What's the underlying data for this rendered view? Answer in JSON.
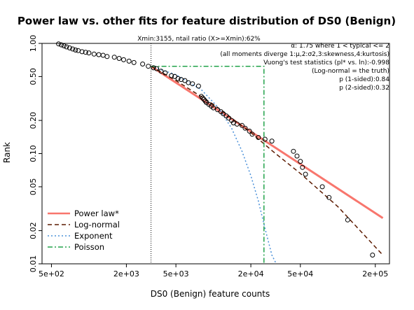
{
  "chart_data": {
    "type": "scatter",
    "title": "Power law vs. other fits for feature distribution of DS0 (Benign)",
    "xlabel": "DS0 (Benign) feature counts",
    "ylabel": "Rank",
    "xscale": "log",
    "yscale": "log",
    "xlim": [
      420,
      260000
    ],
    "ylim": [
      0.01,
      1.0
    ],
    "x_ticks": [
      500,
      2000,
      5000,
      20000,
      50000,
      200000
    ],
    "x_tick_labels": [
      "5e+02",
      "2e+03",
      "5e+03",
      "2e+04",
      "5e+04",
      "2e+05"
    ],
    "y_ticks": [
      0.01,
      0.02,
      0.05,
      0.1,
      0.2,
      0.5,
      1.0
    ],
    "y_tick_labels": [
      "0.01",
      "0.02",
      "0.05",
      "0.10",
      "0.20",
      "0.50",
      "1.00"
    ],
    "xmin_line": 3155,
    "xmin_label": "Xmin:3155, ntail ratio (X>=Xmin):62%",
    "annotations": [
      "α: 1.75  where 1 < typical <= 2",
      "(all moments diverge 1:μ,2:σ2,3:skewness,4:kurtosis)",
      "Vuong's test statistics (pl* vs. ln):-0.998",
      "(Log-normal = the truth)",
      "p (1-sided):0.84",
      "p (2-sided):0.32"
    ],
    "legend_position": "bottom-left",
    "series": [
      {
        "name": "data",
        "kind": "points",
        "color": "#000000",
        "x": [
          570,
          600,
          630,
          660,
          700,
          740,
          780,
          820,
          880,
          940,
          1000,
          1100,
          1200,
          1300,
          1400,
          1600,
          1750,
          1900,
          2100,
          2300,
          2700,
          3000,
          3300,
          3500,
          3800,
          4100,
          4600,
          4900,
          5200,
          5500,
          5900,
          6300,
          6800,
          7600,
          8000,
          8200,
          8400,
          8600,
          8800,
          9200,
          9600,
          10000,
          10800,
          11500,
          12000,
          12700,
          13300,
          14000,
          14500,
          15500,
          17000,
          18000,
          19500,
          20500,
          23000,
          26000,
          29500,
          44000,
          47000,
          50000,
          52000,
          55000,
          75000,
          85000,
          120000,
          190000
        ],
        "y": [
          0.99,
          0.97,
          0.95,
          0.93,
          0.91,
          0.89,
          0.87,
          0.86,
          0.84,
          0.83,
          0.82,
          0.8,
          0.79,
          0.78,
          0.76,
          0.75,
          0.73,
          0.71,
          0.69,
          0.67,
          0.65,
          0.62,
          0.6,
          0.59,
          0.56,
          0.54,
          0.51,
          0.5,
          0.48,
          0.47,
          0.46,
          0.44,
          0.43,
          0.41,
          0.33,
          0.32,
          0.31,
          0.3,
          0.29,
          0.28,
          0.27,
          0.26,
          0.25,
          0.24,
          0.23,
          0.22,
          0.21,
          0.2,
          0.19,
          0.185,
          0.18,
          0.17,
          0.16,
          0.15,
          0.14,
          0.135,
          0.13,
          0.105,
          0.095,
          0.085,
          0.075,
          0.065,
          0.05,
          0.04,
          0.025,
          0.012
        ]
      },
      {
        "name": "Power law*",
        "kind": "line",
        "color": "#f8766d",
        "dash": "solid",
        "x": [
          3155,
          230000
        ],
        "y": [
          0.62,
          0.026
        ]
      },
      {
        "name": "Log-normal",
        "kind": "line",
        "color": "#5c1a00",
        "dash": "dashed",
        "x": [
          3155,
          5000,
          10000,
          20000,
          30000,
          50000,
          100000,
          230000
        ],
        "y": [
          0.62,
          0.46,
          0.28,
          0.155,
          0.105,
          0.066,
          0.033,
          0.012
        ]
      },
      {
        "name": "Exponent",
        "kind": "line",
        "color": "#4a90d9",
        "dash": "dotted",
        "x": [
          3155,
          5000,
          8000,
          11000,
          14000,
          17000,
          20000,
          23000,
          26000,
          29500,
          32000
        ],
        "y": [
          0.62,
          0.52,
          0.38,
          0.26,
          0.17,
          0.105,
          0.063,
          0.037,
          0.021,
          0.012,
          0.01
        ]
      },
      {
        "name": "Poisson",
        "kind": "line",
        "color": "#22a34a",
        "dash": "dotdash",
        "x": [
          3155,
          25500,
          25500
        ],
        "y": [
          0.62,
          0.62,
          0.01
        ]
      }
    ]
  }
}
